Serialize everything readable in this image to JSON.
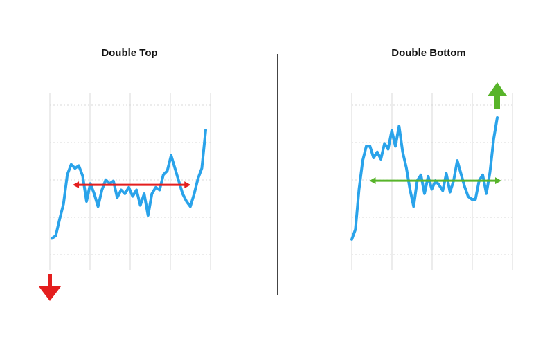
{
  "chart_data": [
    {
      "type": "line",
      "title": "Double Top",
      "grid": true,
      "line_color": "#2aa3ea",
      "x": [
        0,
        1,
        2,
        3,
        4,
        5,
        6,
        7,
        8,
        9,
        10,
        11,
        12,
        13,
        14,
        15,
        16,
        17,
        18,
        19,
        20,
        21,
        22,
        23,
        24,
        25,
        26,
        27,
        28,
        29,
        30,
        31,
        32,
        33,
        34,
        35,
        36,
        37,
        38,
        39,
        40
      ],
      "series": [
        {
          "values": [
            15,
            17,
            30,
            42,
            65,
            73,
            70,
            72,
            64,
            44,
            58,
            50,
            40,
            53,
            61,
            58,
            60,
            47,
            53,
            50,
            55,
            48,
            53,
            41,
            50,
            33,
            50,
            55,
            53,
            65,
            68,
            80,
            70,
            60,
            50,
            44,
            40,
            50,
            62,
            70,
            100
          ]
        }
      ],
      "annotation_line": {
        "y": 57,
        "x_start": 6.5,
        "x_end": 35,
        "color": "#e41e1e"
      },
      "arrow": {
        "direction": "down",
        "color": "#e41e1e"
      }
    },
    {
      "type": "line",
      "title": "Double Bottom",
      "grid": true,
      "line_color": "#2aa3ea",
      "x": [
        0,
        1,
        2,
        3,
        4,
        5,
        6,
        7,
        8,
        9,
        10,
        11,
        12,
        13,
        14,
        15,
        16,
        17,
        18,
        19,
        20,
        21,
        22,
        23,
        24,
        25,
        26,
        27,
        28,
        29,
        30,
        31,
        32,
        33,
        34,
        35,
        36,
        37,
        38,
        39,
        40
      ],
      "series": [
        {
          "values": [
            15,
            22,
            50,
            70,
            80,
            80,
            72,
            76,
            71,
            82,
            78,
            91,
            80,
            94,
            76,
            65,
            50,
            38,
            56,
            60,
            47,
            59,
            50,
            56,
            53,
            49,
            61,
            48,
            56,
            70,
            61,
            52,
            45,
            43,
            43,
            56,
            60,
            47,
            62,
            85,
            100
          ]
        }
      ],
      "annotation_line": {
        "y": 56,
        "x_start": 6,
        "x_end": 40,
        "color": "#58b42a"
      },
      "arrow": {
        "direction": "up",
        "color": "#58b42a"
      }
    }
  ]
}
